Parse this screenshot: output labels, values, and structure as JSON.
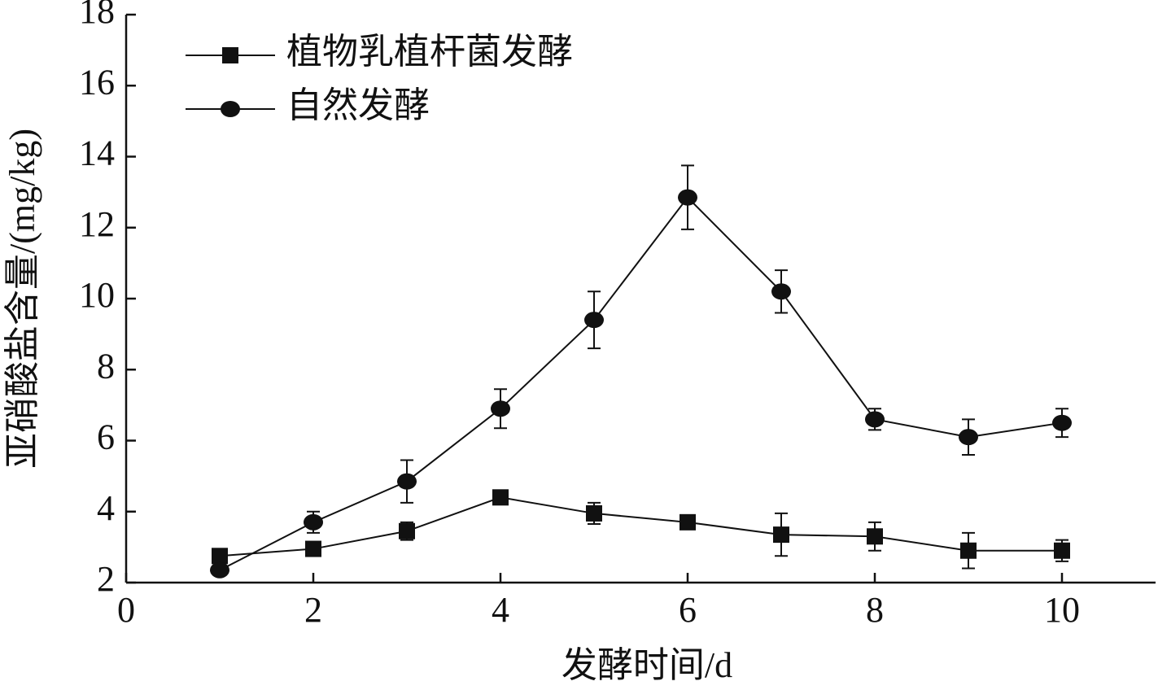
{
  "chart_data": {
    "type": "line",
    "x_label": "发酵时间/d",
    "y_label": "亚硝酸盐含量/(mg/kg)",
    "x": [
      1,
      2,
      3,
      4,
      5,
      6,
      7,
      8,
      9,
      10
    ],
    "series": [
      {
        "name": "植物乳植杆菌发酵",
        "color": "#111111",
        "marker": "square",
        "values": [
          2.75,
          2.95,
          3.45,
          4.4,
          3.95,
          3.7,
          3.35,
          3.3,
          2.9,
          2.9
        ],
        "errors": [
          0.1,
          0.1,
          0.25,
          0.15,
          0.3,
          0.1,
          0.6,
          0.4,
          0.5,
          0.3
        ]
      },
      {
        "name": "自然发酵",
        "color": "#111111",
        "marker": "circle",
        "values": [
          2.35,
          3.7,
          4.85,
          6.9,
          9.4,
          12.85,
          10.2,
          6.6,
          6.1,
          6.5
        ],
        "errors": [
          0.1,
          0.3,
          0.6,
          0.55,
          0.8,
          0.9,
          0.6,
          0.3,
          0.5,
          0.4
        ]
      }
    ],
    "xlim": [
      0,
      11
    ],
    "xticks": [
      0,
      2,
      4,
      6,
      8,
      10
    ],
    "ylim": [
      2,
      18
    ],
    "yticks": [
      2,
      4,
      6,
      8,
      10,
      12,
      14,
      16,
      18
    ],
    "legend": "upper-left"
  }
}
